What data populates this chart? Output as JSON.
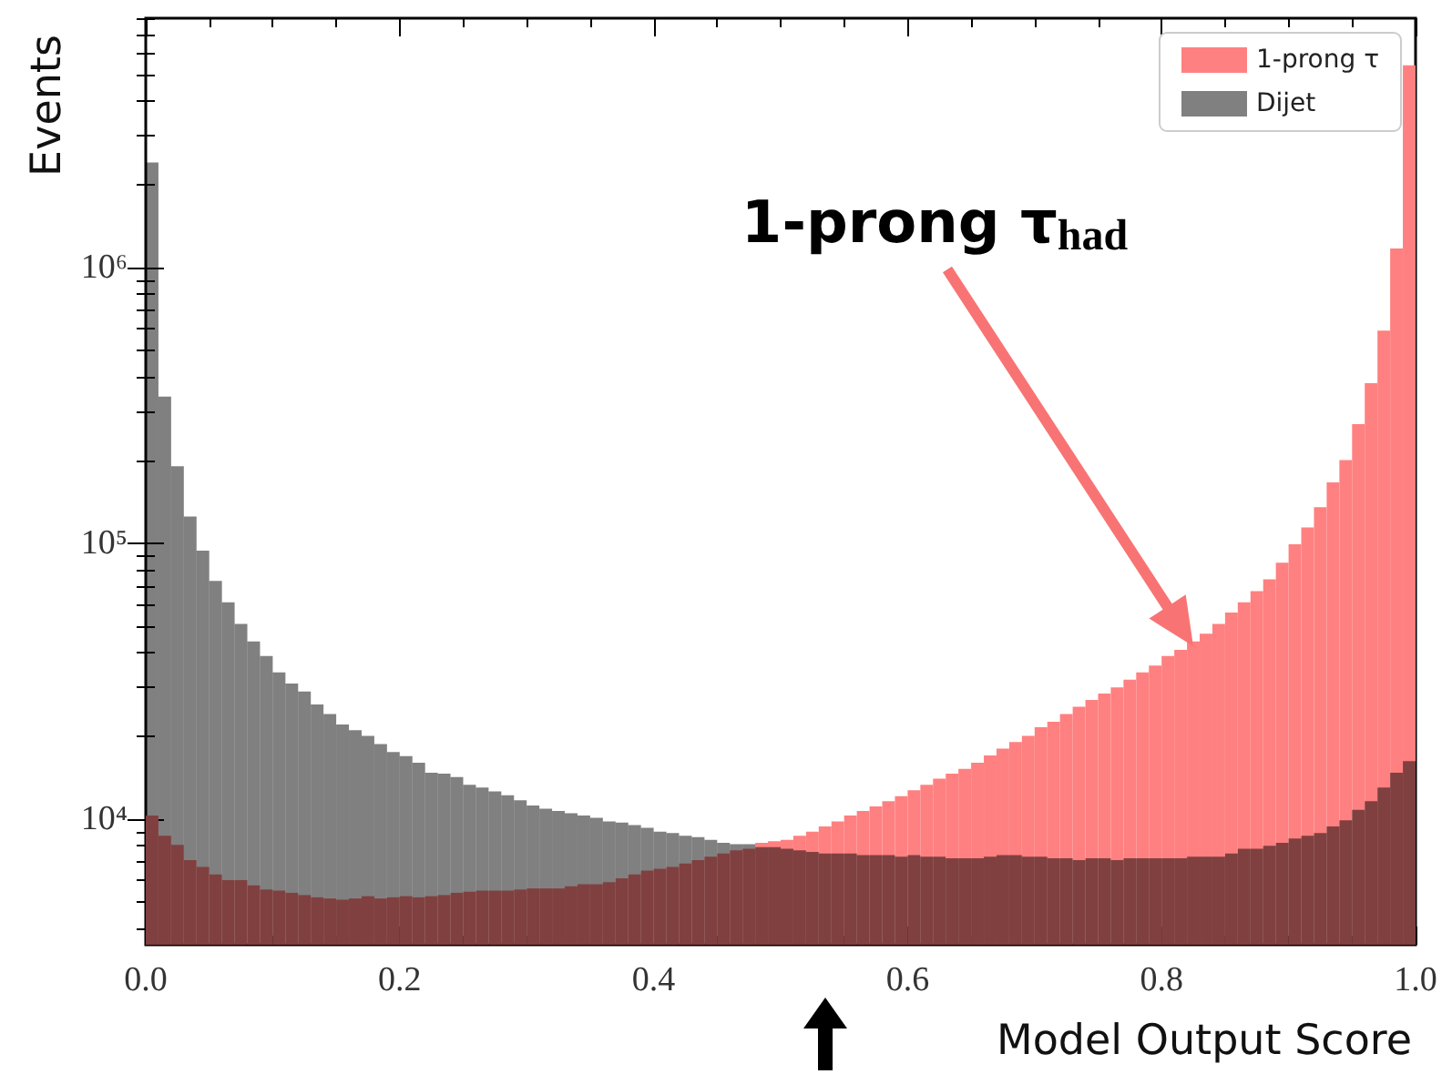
{
  "chart_data": {
    "type": "histogram",
    "xlabel": "Model Output Score",
    "ylabel": "Events",
    "log": true,
    "legend": "top right",
    "bins": [
      0,
      0.01,
      0.02,
      0.03,
      0.04,
      0.05,
      0.06,
      0.07,
      0.08,
      0.09,
      0.1,
      0.11,
      0.12,
      0.13,
      0.14,
      0.15,
      0.16,
      0.17,
      0.18,
      0.19,
      0.2,
      0.21,
      0.22,
      0.23,
      0.24,
      0.25,
      0.26,
      0.27,
      0.28,
      0.29,
      0.3,
      0.31,
      0.32,
      0.33,
      0.34,
      0.35,
      0.36,
      0.37,
      0.38,
      0.39,
      0.4,
      0.41,
      0.42,
      0.43,
      0.44,
      0.45,
      0.46,
      0.47,
      0.48,
      0.49,
      0.5,
      0.51,
      0.52,
      0.53,
      0.54,
      0.55,
      0.56,
      0.57,
      0.58,
      0.59,
      0.6,
      0.61,
      0.62,
      0.63,
      0.64,
      0.65,
      0.66,
      0.67,
      0.68,
      0.69,
      0.7,
      0.71,
      0.72,
      0.73,
      0.74,
      0.75,
      0.76,
      0.77,
      0.78,
      0.79,
      0.8,
      0.81,
      0.82,
      0.83,
      0.84,
      0.85,
      0.86,
      0.87,
      0.88,
      0.89,
      0.9,
      0.91,
      0.92,
      0.93,
      0.94,
      0.95,
      0.96,
      0.97,
      0.98,
      0.99,
      1.0
    ],
    "series": [
      {
        "name": "1-prong τ",
        "color": "#ff8080",
        "values": [
          10300,
          8700,
          8050,
          7100,
          6700,
          6300,
          6000,
          6000,
          5750,
          5550,
          5500,
          5400,
          5300,
          5200,
          5150,
          5100,
          5150,
          5250,
          5150,
          5200,
          5250,
          5200,
          5250,
          5300,
          5400,
          5450,
          5500,
          5500,
          5500,
          5550,
          5600,
          5600,
          5600,
          5700,
          5800,
          5800,
          5900,
          6100,
          6300,
          6500,
          6600,
          6700,
          6900,
          7100,
          7300,
          7500,
          7700,
          7800,
          8200,
          8300,
          8400,
          8700,
          9000,
          9400,
          9800,
          10300,
          10700,
          11100,
          11600,
          12100,
          12700,
          13300,
          14000,
          14600,
          15200,
          16000,
          17000,
          18000,
          19000,
          20000,
          21500,
          22500,
          24000,
          25500,
          27000,
          28500,
          30000,
          32000,
          34000,
          36000,
          39000,
          41000,
          44000,
          47000,
          51000,
          56000,
          61000,
          67000,
          74000,
          85000,
          99000,
          114000,
          135000,
          166000,
          200000,
          270000,
          380000,
          590000,
          1170000,
          5400000
        ]
      },
      {
        "name": "Dijet",
        "color": "#808080",
        "values": [
          2400000,
          340000,
          190000,
          125000,
          94000,
          73000,
          61000,
          51000,
          44000,
          39000,
          34000,
          31000,
          29000,
          26000,
          24000,
          22000,
          21000,
          20000,
          18700,
          17500,
          16900,
          16000,
          14700,
          14600,
          14200,
          13300,
          13000,
          12600,
          12200,
          11700,
          11200,
          10900,
          10700,
          10500,
          10300,
          10100,
          9800,
          9700,
          9500,
          9300,
          9000,
          8900,
          8700,
          8600,
          8400,
          8200,
          8100,
          8100,
          7900,
          7900,
          7800,
          7700,
          7600,
          7500,
          7500,
          7500,
          7400,
          7400,
          7400,
          7300,
          7400,
          7300,
          7300,
          7200,
          7200,
          7200,
          7300,
          7400,
          7400,
          7300,
          7300,
          7200,
          7200,
          7100,
          7200,
          7200,
          7100,
          7200,
          7200,
          7200,
          7200,
          7200,
          7300,
          7300,
          7300,
          7500,
          7800,
          7800,
          8000,
          8200,
          8500,
          8700,
          8900,
          9400,
          9900,
          10800,
          11600,
          13000,
          14700,
          16200
        ]
      }
    ],
    "xlim": [
      0,
      1
    ],
    "xticks": [
      {
        "value": 0,
        "label": "0.0"
      },
      {
        "value": 0.05,
        "label": null
      },
      {
        "value": 0.1,
        "label": null
      },
      {
        "value": 0.15,
        "label": null
      },
      {
        "value": 0.2,
        "label": "0.2"
      },
      {
        "value": 0.25,
        "label": null
      },
      {
        "value": 0.3,
        "label": null
      },
      {
        "value": 0.35,
        "label": null
      },
      {
        "value": 0.4,
        "label": "0.4"
      },
      {
        "value": 0.45,
        "label": null
      },
      {
        "value": 0.5,
        "label": null
      },
      {
        "value": 0.55,
        "label": null
      },
      {
        "value": 0.6,
        "label": "0.6"
      },
      {
        "value": 0.65,
        "label": null
      },
      {
        "value": 0.7,
        "label": null
      },
      {
        "value": 0.75,
        "label": null
      },
      {
        "value": 0.8,
        "label": "0.8"
      },
      {
        "value": 0.85,
        "label": null
      },
      {
        "value": 0.9,
        "label": null
      },
      {
        "value": 0.95,
        "label": null
      },
      {
        "value": 1,
        "label": "1.0"
      }
    ],
    "ylim": [
      3500,
      8000000
    ],
    "yticks": [
      {
        "value": 4000,
        "label": null
      },
      {
        "value": 5000,
        "label": null
      },
      {
        "value": 6000,
        "label": null
      },
      {
        "value": 7000,
        "label": null
      },
      {
        "value": 8000,
        "label": null
      },
      {
        "value": 9000,
        "label": null
      },
      {
        "value": 10000,
        "label": "10⁴"
      },
      {
        "value": 20000,
        "label": null
      },
      {
        "value": 30000,
        "label": null
      },
      {
        "value": 40000,
        "label": null
      },
      {
        "value": 50000,
        "label": null
      },
      {
        "value": 60000,
        "label": null
      },
      {
        "value": 70000,
        "label": null
      },
      {
        "value": 80000,
        "label": null
      },
      {
        "value": 90000,
        "label": null
      },
      {
        "value": 100000,
        "label": "10⁵"
      },
      {
        "value": 200000,
        "label": null
      },
      {
        "value": 300000,
        "label": null
      },
      {
        "value": 400000,
        "label": null
      },
      {
        "value": 500000,
        "label": null
      },
      {
        "value": 600000,
        "label": null
      },
      {
        "value": 700000,
        "label": null
      },
      {
        "value": 800000,
        "label": null
      },
      {
        "value": 900000,
        "label": null
      },
      {
        "value": 1000000,
        "label": "10⁶"
      },
      {
        "value": 2000000,
        "label": null
      },
      {
        "value": 3000000,
        "label": null
      },
      {
        "value": 4000000,
        "label": null
      },
      {
        "value": 5000000,
        "label": null
      },
      {
        "value": 6000000,
        "label": null
      },
      {
        "value": 7000000,
        "label": null
      },
      {
        "value": 8000000,
        "label": null
      }
    ],
    "annotations": [
      "1-prong τ$_{had}$"
    ]
  }
}
